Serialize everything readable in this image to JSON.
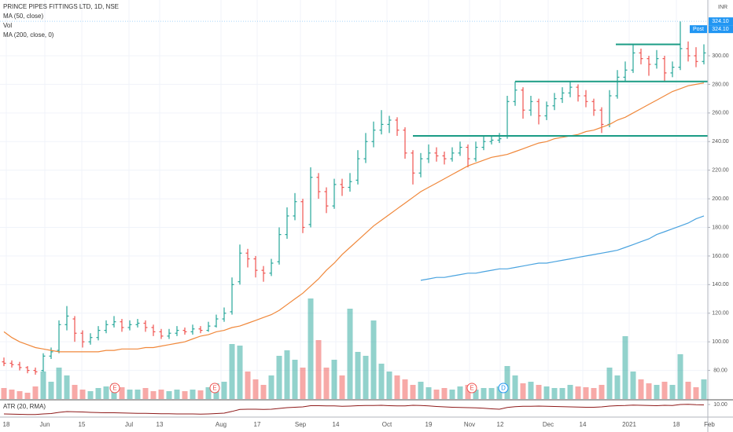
{
  "chart_data": {
    "type": "ohlc",
    "title": "PRINCE PIPES FITTINGS LTD, 1D, NSE",
    "currency": "INR",
    "xlim": [
      -0.5,
      89.5
    ],
    "ylim": [
      60,
      339
    ],
    "grid": true,
    "up_color": "#26a69a",
    "down_color": "#ef5350",
    "yticks": [
      {
        "value": 80,
        "label": "80.00"
      },
      {
        "value": 100,
        "label": "100.00"
      },
      {
        "value": 120,
        "label": "120.00"
      },
      {
        "value": 140,
        "label": "140.00"
      },
      {
        "value": 160,
        "label": "160.00"
      },
      {
        "value": 180,
        "label": "180.00"
      },
      {
        "value": 200,
        "label": "200.00"
      },
      {
        "value": 220,
        "label": "220.00"
      },
      {
        "value": 240,
        "label": "240.00"
      },
      {
        "value": 260,
        "label": "260.00"
      },
      {
        "value": 280,
        "label": "280.00"
      },
      {
        "value": 300,
        "label": "300.00"
      }
    ],
    "xticks": [
      {
        "value": 0.3,
        "label": "18"
      },
      {
        "value": 5.2,
        "label": "Jun"
      },
      {
        "value": 9.9,
        "label": "15"
      },
      {
        "value": 15.9,
        "label": "Jul"
      },
      {
        "value": 19.8,
        "label": "13"
      },
      {
        "value": 27.6,
        "label": "Aug"
      },
      {
        "value": 32.2,
        "label": "17"
      },
      {
        "value": 37.7,
        "label": "Sep"
      },
      {
        "value": 42.2,
        "label": "14"
      },
      {
        "value": 48.7,
        "label": "Oct"
      },
      {
        "value": 54,
        "label": "19"
      },
      {
        "value": 59.2,
        "label": "Nov"
      },
      {
        "value": 63.1,
        "label": "12"
      },
      {
        "value": 69.2,
        "label": "Dec"
      },
      {
        "value": 73.6,
        "label": "14"
      },
      {
        "value": 79.5,
        "label": "2021"
      },
      {
        "value": 85.5,
        "label": "18"
      },
      {
        "value": 89.7,
        "label": "Feb"
      }
    ],
    "ohlc": [
      [
        86,
        89,
        83,
        85
      ],
      [
        85,
        87,
        82,
        84
      ],
      [
        84,
        86,
        80,
        82
      ],
      [
        82,
        83,
        78,
        80
      ],
      [
        80,
        82,
        77,
        79
      ],
      [
        80,
        92,
        79,
        90
      ],
      [
        90,
        96,
        88,
        93
      ],
      [
        94,
        115,
        92,
        112
      ],
      [
        112,
        125,
        108,
        118
      ],
      [
        116,
        118,
        100,
        106
      ],
      [
        106,
        108,
        96,
        100
      ],
      [
        100,
        106,
        98,
        103
      ],
      [
        103,
        111,
        101,
        108
      ],
      [
        108,
        115,
        106,
        112
      ],
      [
        112,
        118,
        110,
        114
      ],
      [
        114,
        116,
        107,
        110
      ],
      [
        110,
        115,
        108,
        112
      ],
      [
        112,
        116,
        110,
        113
      ],
      [
        113,
        115,
        107,
        110
      ],
      [
        110,
        112,
        104,
        107
      ],
      [
        107,
        109,
        102,
        104
      ],
      [
        104,
        109,
        102,
        106
      ],
      [
        106,
        111,
        104,
        108
      ],
      [
        108,
        110,
        105,
        107
      ],
      [
        107,
        112,
        105,
        109
      ],
      [
        109,
        111,
        106,
        108
      ],
      [
        108,
        114,
        107,
        111
      ],
      [
        111,
        119,
        110,
        116
      ],
      [
        116,
        124,
        114,
        120
      ],
      [
        121,
        145,
        119,
        140
      ],
      [
        142,
        168,
        140,
        162
      ],
      [
        162,
        165,
        152,
        158
      ],
      [
        158,
        160,
        145,
        150
      ],
      [
        150,
        153,
        142,
        148
      ],
      [
        148,
        158,
        146,
        155
      ],
      [
        156,
        180,
        154,
        175
      ],
      [
        175,
        194,
        172,
        188
      ],
      [
        188,
        204,
        185,
        198
      ],
      [
        198,
        200,
        176,
        180
      ],
      [
        182,
        222,
        180,
        215
      ],
      [
        215,
        218,
        200,
        205
      ],
      [
        205,
        208,
        190,
        195
      ],
      [
        195,
        214,
        193,
        210
      ],
      [
        210,
        214,
        202,
        208
      ],
      [
        208,
        218,
        205,
        212
      ],
      [
        213,
        234,
        210,
        228
      ],
      [
        228,
        246,
        225,
        240
      ],
      [
        240,
        254,
        236,
        248
      ],
      [
        248,
        262,
        245,
        252
      ],
      [
        252,
        258,
        246,
        255
      ],
      [
        255,
        257,
        244,
        248
      ],
      [
        248,
        250,
        228,
        232
      ],
      [
        232,
        234,
        210,
        218
      ],
      [
        218,
        232,
        215,
        228
      ],
      [
        228,
        238,
        225,
        232
      ],
      [
        232,
        236,
        226,
        230
      ],
      [
        230,
        233,
        224,
        228
      ],
      [
        228,
        236,
        226,
        232
      ],
      [
        232,
        240,
        230,
        236
      ],
      [
        236,
        238,
        222,
        228
      ],
      [
        228,
        240,
        226,
        236
      ],
      [
        236,
        244,
        234,
        240
      ],
      [
        240,
        244,
        238,
        241
      ],
      [
        241,
        246,
        239,
        242
      ],
      [
        244,
        272,
        242,
        268
      ],
      [
        268,
        282,
        265,
        276
      ],
      [
        276,
        278,
        256,
        262
      ],
      [
        262,
        272,
        258,
        268
      ],
      [
        268,
        270,
        252,
        258
      ],
      [
        258,
        268,
        255,
        265
      ],
      [
        265,
        274,
        262,
        270
      ],
      [
        270,
        278,
        267,
        274
      ],
      [
        274,
        282,
        271,
        278
      ],
      [
        278,
        280,
        268,
        272
      ],
      [
        272,
        276,
        264,
        268
      ],
      [
        268,
        270,
        258,
        262
      ],
      [
        262,
        264,
        246,
        252
      ],
      [
        252,
        276,
        250,
        272
      ],
      [
        272,
        290,
        270,
        285
      ],
      [
        285,
        296,
        282,
        290
      ],
      [
        290,
        308,
        288,
        302
      ],
      [
        302,
        305,
        294,
        298
      ],
      [
        298,
        300,
        286,
        294
      ],
      [
        294,
        304,
        291,
        298
      ],
      [
        298,
        300,
        282,
        288
      ],
      [
        288,
        296,
        285,
        292
      ],
      [
        292,
        324,
        290,
        305
      ],
      [
        305,
        310,
        296,
        300
      ],
      [
        300,
        306,
        292,
        296
      ],
      [
        296,
        308,
        294,
        302
      ]
    ],
    "volume": {
      "name": "Vol",
      "values": [
        14,
        12,
        10,
        8,
        16,
        35,
        22,
        40,
        30,
        18,
        12,
        10,
        14,
        16,
        20,
        15,
        12,
        12,
        14,
        10,
        12,
        10,
        12,
        10,
        12,
        11,
        15,
        20,
        22,
        70,
        68,
        35,
        25,
        18,
        30,
        55,
        62,
        50,
        40,
        128,
        75,
        40,
        50,
        30,
        115,
        60,
        55,
        100,
        45,
        35,
        30,
        25,
        18,
        22,
        15,
        12,
        14,
        12,
        16,
        18,
        12,
        14,
        14,
        16,
        42,
        30,
        20,
        22,
        18,
        16,
        14,
        14,
        18,
        16,
        15,
        14,
        18,
        40,
        30,
        80,
        35,
        25,
        20,
        18,
        22,
        18,
        57,
        22,
        15,
        25
      ]
    },
    "series": [
      {
        "name": "MA (50, close)",
        "color": "#f0883b",
        "values": [
          107,
          103,
          100,
          98,
          96,
          95,
          94,
          93,
          93,
          93,
          93,
          93,
          93,
          94,
          94,
          95,
          95,
          95,
          96,
          96,
          97,
          98,
          99,
          100,
          102,
          104,
          105,
          107,
          108,
          110,
          111,
          113,
          115,
          117,
          119,
          122,
          126,
          130,
          134,
          139,
          144,
          150,
          155,
          161,
          166,
          171,
          176,
          181,
          185,
          189,
          193,
          197,
          201,
          205,
          208,
          211,
          214,
          217,
          220,
          223,
          225,
          227,
          229,
          230,
          231,
          233,
          235,
          237,
          239,
          240,
          242,
          243,
          244,
          245,
          247,
          248,
          250,
          252,
          255,
          257,
          260,
          263,
          266,
          269,
          272,
          275,
          277,
          279,
          280,
          281
        ]
      },
      {
        "name": "MA (200, close, 0)",
        "color": "#4aa3df",
        "values": [
          null,
          null,
          null,
          null,
          null,
          null,
          null,
          null,
          null,
          null,
          null,
          null,
          null,
          null,
          null,
          null,
          null,
          null,
          null,
          null,
          null,
          null,
          null,
          null,
          null,
          null,
          null,
          null,
          null,
          null,
          null,
          null,
          null,
          null,
          null,
          null,
          null,
          null,
          null,
          null,
          null,
          null,
          null,
          null,
          null,
          null,
          null,
          null,
          null,
          null,
          null,
          null,
          null,
          143,
          144,
          145,
          145,
          146,
          147,
          148,
          148,
          149,
          150,
          151,
          151,
          152,
          153,
          154,
          155,
          155,
          156,
          157,
          158,
          159,
          160,
          161,
          162,
          163,
          164,
          166,
          168,
          170,
          172,
          175,
          177,
          179,
          181,
          183,
          186,
          188
        ]
      }
    ],
    "levels": [
      {
        "value": 244,
        "from": 52,
        "to": 89.5
      },
      {
        "value": 282,
        "from": 65,
        "to": 89.5
      },
      {
        "value": 308,
        "from": 77.8,
        "to": 86
      }
    ],
    "level_color": "#1b9c85",
    "events": [
      {
        "label": "E",
        "x": 14.1
      },
      {
        "label": "E",
        "x": 26.8
      },
      {
        "label": "E",
        "x": 59.5
      },
      {
        "label": "D",
        "x": 63.5
      }
    ],
    "price_labels": [
      {
        "value": 324.1,
        "label": "324.10"
      },
      {
        "name": "Post",
        "value": 324.1,
        "label": "324.10"
      }
    ],
    "atr": {
      "name": "ATR (20, RMA)",
      "color": "#8e1a1a",
      "ylim": [
        4,
        12
      ],
      "yticks": [
        {
          "value": 10,
          "label": "10.00"
        }
      ],
      "values": [
        5.2,
        5.1,
        5.0,
        4.9,
        4.9,
        5.2,
        5.4,
        6.0,
        6.4,
        6.3,
        6.2,
        6.0,
        5.9,
        5.8,
        5.8,
        5.7,
        5.6,
        5.5,
        5.5,
        5.4,
        5.3,
        5.3,
        5.2,
        5.2,
        5.2,
        5.1,
        5.2,
        5.4,
        5.6,
        6.5,
        7.5,
        7.6,
        7.6,
        7.5,
        7.6,
        8.0,
        8.4,
        8.6,
        8.8,
        9.4,
        9.4,
        9.3,
        9.3,
        9.1,
        9.2,
        9.4,
        9.5,
        9.5,
        9.6,
        9.4,
        9.3,
        9.3,
        9.6,
        9.5,
        9.3,
        9.0,
        8.8,
        8.6,
        8.5,
        8.4,
        8.3,
        8.1,
        7.8,
        7.6,
        8.5,
        8.9,
        9.1,
        9.1,
        9.2,
        9.1,
        9.0,
        8.9,
        8.8,
        8.7,
        8.6,
        8.6,
        8.8,
        9.2,
        9.4,
        9.5,
        9.7,
        9.6,
        9.5,
        9.4,
        9.6,
        9.5,
        10.0,
        10.1,
        9.9,
        9.8
      ]
    }
  }
}
